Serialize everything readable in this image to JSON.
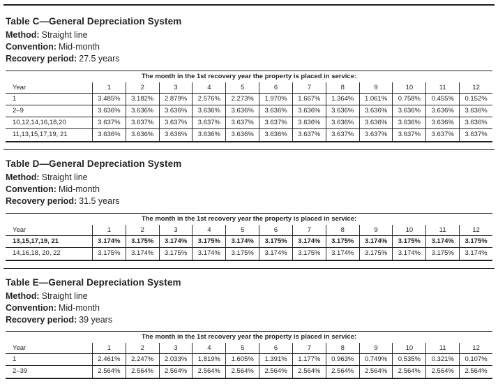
{
  "tables": [
    {
      "title": "Table C—General Depreciation System",
      "meta": [
        {
          "label": "Method:",
          "value": "Straight line"
        },
        {
          "label": "Convention:",
          "value": "Mid-month"
        },
        {
          "label": "Recovery period:",
          "value": "27.5 years"
        }
      ],
      "span_header": "The month in the 1st recovery year the property is placed in service:",
      "year_col_label": "Year",
      "month_cols": [
        "1",
        "2",
        "3",
        "4",
        "5",
        "6",
        "7",
        "8",
        "9",
        "10",
        "11",
        "12"
      ],
      "rows": [
        {
          "label": "1",
          "bold": false,
          "values": [
            "3.485%",
            "3.182%",
            "2.879%",
            "2.576%",
            "2.273%",
            "1.970%",
            "1.667%",
            "1.364%",
            "1.061%",
            "0.758%",
            "0.455%",
            "0.152%"
          ]
        },
        {
          "label": "2–9",
          "bold": false,
          "values": [
            "3.636%",
            "3.636%",
            "3.636%",
            "3.636%",
            "3.636%",
            "3.636%",
            "3.636%",
            "3.636%",
            "3.636%",
            "3.636%",
            "3.636%",
            "3.636%"
          ]
        },
        {
          "label": "10,12,14,16,18,20",
          "bold": false,
          "values": [
            "3.637%",
            "3.637%",
            "3.637%",
            "3.637%",
            "3.637%",
            "3.637%",
            "3.636%",
            "3.636%",
            "3.636%",
            "3.636%",
            "3.636%",
            "3.636%"
          ]
        },
        {
          "label": "11,13,15,17,19, 21",
          "bold": false,
          "values": [
            "3.636%",
            "3.636%",
            "3.636%",
            "3.636%",
            "3.636%",
            "3.636%",
            "3.637%",
            "3.637%",
            "3.637%",
            "3.637%",
            "3.637%",
            "3.637%"
          ]
        }
      ]
    },
    {
      "title": "Table D—General Depreciation System",
      "meta": [
        {
          "label": "Method:",
          "value": "Straight line"
        },
        {
          "label": "Convention:",
          "value": "Mid-month"
        },
        {
          "label": "Recovery period:",
          "value": "31.5 years"
        }
      ],
      "span_header": "The month in the 1st recovery year the property is placed in service:",
      "year_col_label": "Year",
      "month_cols": [
        "1",
        "2",
        "3",
        "4",
        "5",
        "6",
        "7",
        "8",
        "9",
        "10",
        "11",
        "12"
      ],
      "rows": [
        {
          "label": "13,15,17,19, 21",
          "bold": true,
          "values": [
            "3.174%",
            "3.175%",
            "3.174%",
            "3.175%",
            "3.174%",
            "3.175%",
            "3.174%",
            "3.175%",
            "3.174%",
            "3.175%",
            "3.174%",
            "3.175%"
          ]
        },
        {
          "label": "14,16,18, 20, 22",
          "bold": false,
          "values": [
            "3.175%",
            "3.174%",
            "3.175%",
            "3.174%",
            "3.175%",
            "3.174%",
            "3.175%",
            "3.174%",
            "3.175%",
            "3.174%",
            "3.175%",
            "3.174%"
          ]
        }
      ]
    },
    {
      "title": "Table E—General Depreciation System",
      "meta": [
        {
          "label": "Method:",
          "value": "Straight line"
        },
        {
          "label": "Convention:",
          "value": "Mid-month"
        },
        {
          "label": "Recovery period:",
          "value": "39 years"
        }
      ],
      "span_header": "The month in the 1st recovery year the property is placed in service:",
      "year_col_label": "Year",
      "month_cols": [
        "1",
        "2",
        "3",
        "4",
        "5",
        "6",
        "7",
        "8",
        "9",
        "10",
        "11",
        "12"
      ],
      "rows": [
        {
          "label": "1",
          "bold": false,
          "values": [
            "2.461%",
            "2.247%",
            "2.033%",
            "1.819%",
            "1.605%",
            "1.391%",
            "1.177%",
            "0.963%",
            "0.749%",
            "0.535%",
            "0.321%",
            "0.107%"
          ]
        },
        {
          "label": "2–39",
          "bold": false,
          "values": [
            "2.564%",
            "2.564%",
            "2.564%",
            "2.564%",
            "2.564%",
            "2.564%",
            "2.564%",
            "2.564%",
            "2.564%",
            "2.564%",
            "2.564%",
            "2.564%"
          ]
        }
      ]
    }
  ]
}
